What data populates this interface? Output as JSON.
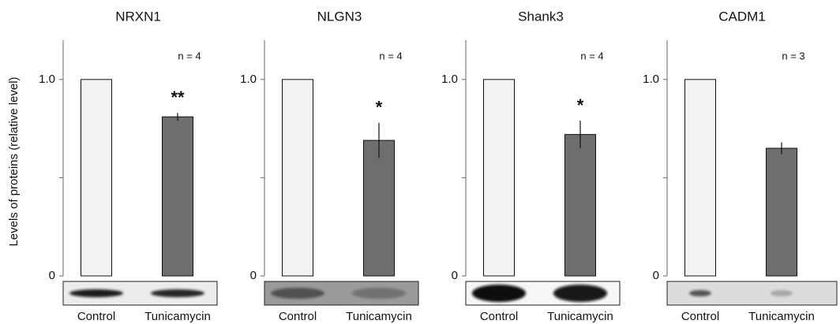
{
  "chart_data": [
    {
      "type": "bar",
      "title": "NRXN1",
      "ylabel": "Levels of proteins (relative level)",
      "n_label": "n = 4",
      "categories": [
        "Control",
        "Tunicamycin"
      ],
      "values": [
        1,
        0.81
      ],
      "errors": [
        null,
        0.02
      ],
      "significance": [
        null,
        "**"
      ],
      "colors": [
        "#f2f2f2",
        "#6e6e6e"
      ],
      "ylim": [
        0,
        1.2
      ],
      "yticks": [
        0,
        {
          "value": 0.5,
          "label": null
        },
        {
          "value": 1,
          "label": "1.0"
        }
      ]
    },
    {
      "type": "bar",
      "title": "NLGN3",
      "n_label": "n = 4",
      "categories": [
        "Control",
        "Tunicamycin"
      ],
      "values": [
        1,
        0.69
      ],
      "errors": [
        null,
        0.09
      ],
      "significance": [
        null,
        "*"
      ],
      "colors": [
        "#f2f2f2",
        "#6e6e6e"
      ],
      "ylim": [
        0,
        1.2
      ],
      "yticks": [
        0,
        {
          "value": 0.5,
          "label": null
        },
        {
          "value": 1,
          "label": "1.0"
        }
      ]
    },
    {
      "type": "bar",
      "title": "Shank3",
      "n_label": "n = 4",
      "categories": [
        "Control",
        "Tunicamycin"
      ],
      "values": [
        1,
        0.72
      ],
      "errors": [
        null,
        0.07
      ],
      "significance": [
        null,
        "*"
      ],
      "colors": [
        "#f2f2f2",
        "#6e6e6e"
      ],
      "ylim": [
        0,
        1.2
      ],
      "yticks": [
        0,
        {
          "value": 0.5,
          "label": null
        },
        {
          "value": 1,
          "label": "1.0"
        }
      ]
    },
    {
      "type": "bar",
      "title": "CADM1",
      "n_label": "n = 3",
      "categories": [
        "Control",
        "Tunicamycin"
      ],
      "values": [
        1,
        0.65
      ],
      "errors": [
        null,
        0.03
      ],
      "colors": [
        "#f2f2f2",
        "#6e6e6e"
      ],
      "ylim": [
        0,
        1.2
      ],
      "yticks": [
        0,
        {
          "value": 0.5,
          "label": null
        },
        {
          "value": 1,
          "label": "1.0"
        }
      ]
    }
  ]
}
